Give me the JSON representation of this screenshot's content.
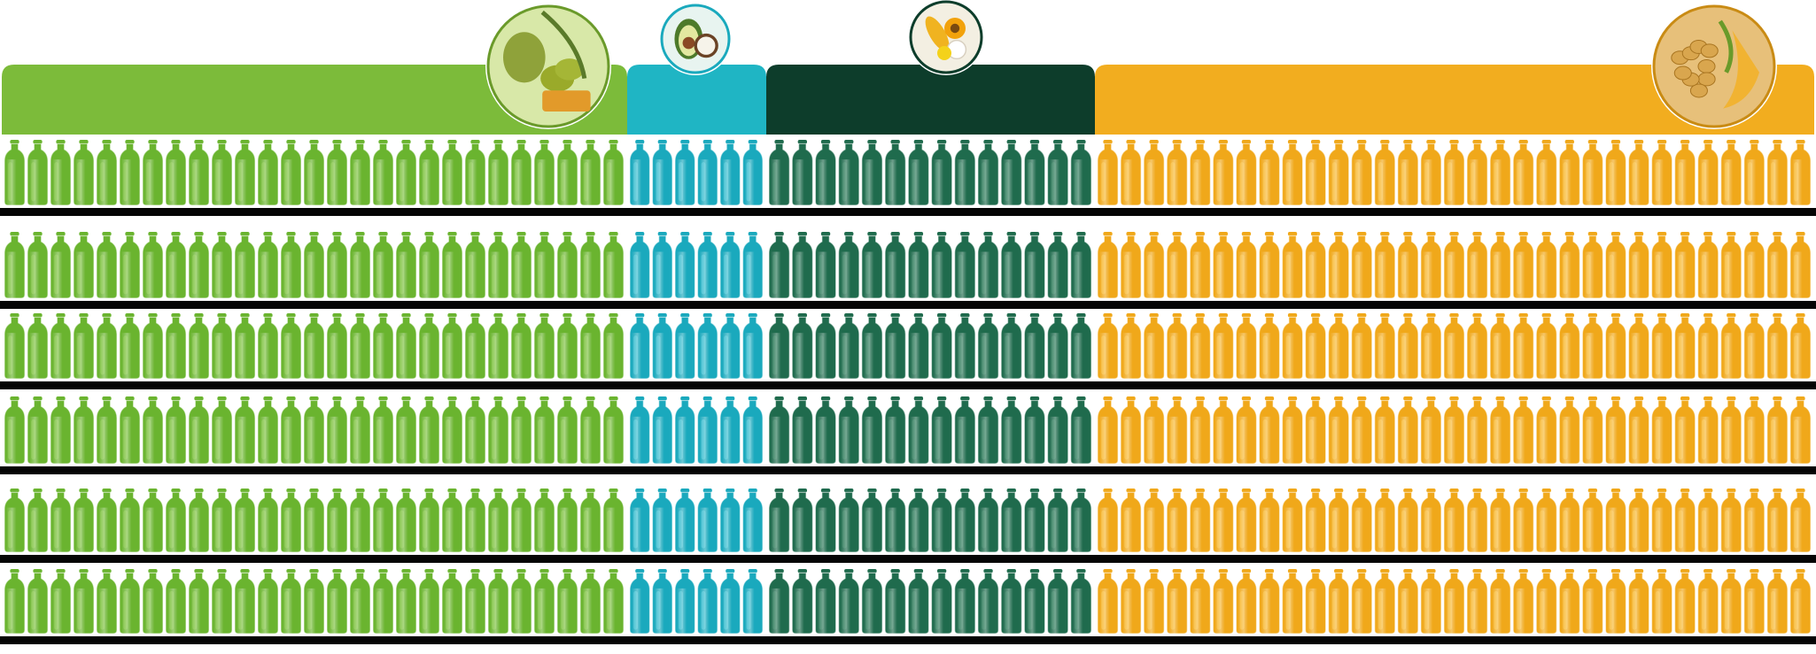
{
  "colors": {
    "background": "#ffffff",
    "shelf": "#050505",
    "bottle_outline": "#ffffff"
  },
  "categories": [
    {
      "key": "olive",
      "header_color": "#7cbb3a",
      "bottle_color": "#6ab42f",
      "bottle_highlight": "#8fd04f",
      "bottles_per_row": 27,
      "badge": {
        "icon": "olive-icon",
        "bg": "#d8e8a8",
        "ring": "#6a9a2a"
      }
    },
    {
      "key": "coconut-avocado",
      "header_color": "#1fb5c4",
      "bottle_color": "#1aa9bd",
      "bottle_highlight": "#55cfe0",
      "bottles_per_row": 6,
      "badge": {
        "icon": "avocado-coconut-icon",
        "bg": "#e8f4f0",
        "ring": "#1aa9bd"
      }
    },
    {
      "key": "corn-sunflower",
      "header_color": "#0d3d2b",
      "bottle_color": "#1f6b4d",
      "bottle_highlight": "#3a8a68",
      "bottles_per_row": 14,
      "badge": {
        "icon": "corn-sunflower-icon",
        "bg": "#f3efe2",
        "ring": "#0d3d2b"
      }
    },
    {
      "key": "soy",
      "header_color": "#f2ad1f",
      "bottle_color": "#f0a81a",
      "bottle_highlight": "#ffc84a",
      "bottles_per_row": 31,
      "badge": {
        "icon": "soybean-oil-icon",
        "bg": "#e7c07a",
        "ring": "#c98b14"
      }
    }
  ],
  "shelves_count": 6
}
